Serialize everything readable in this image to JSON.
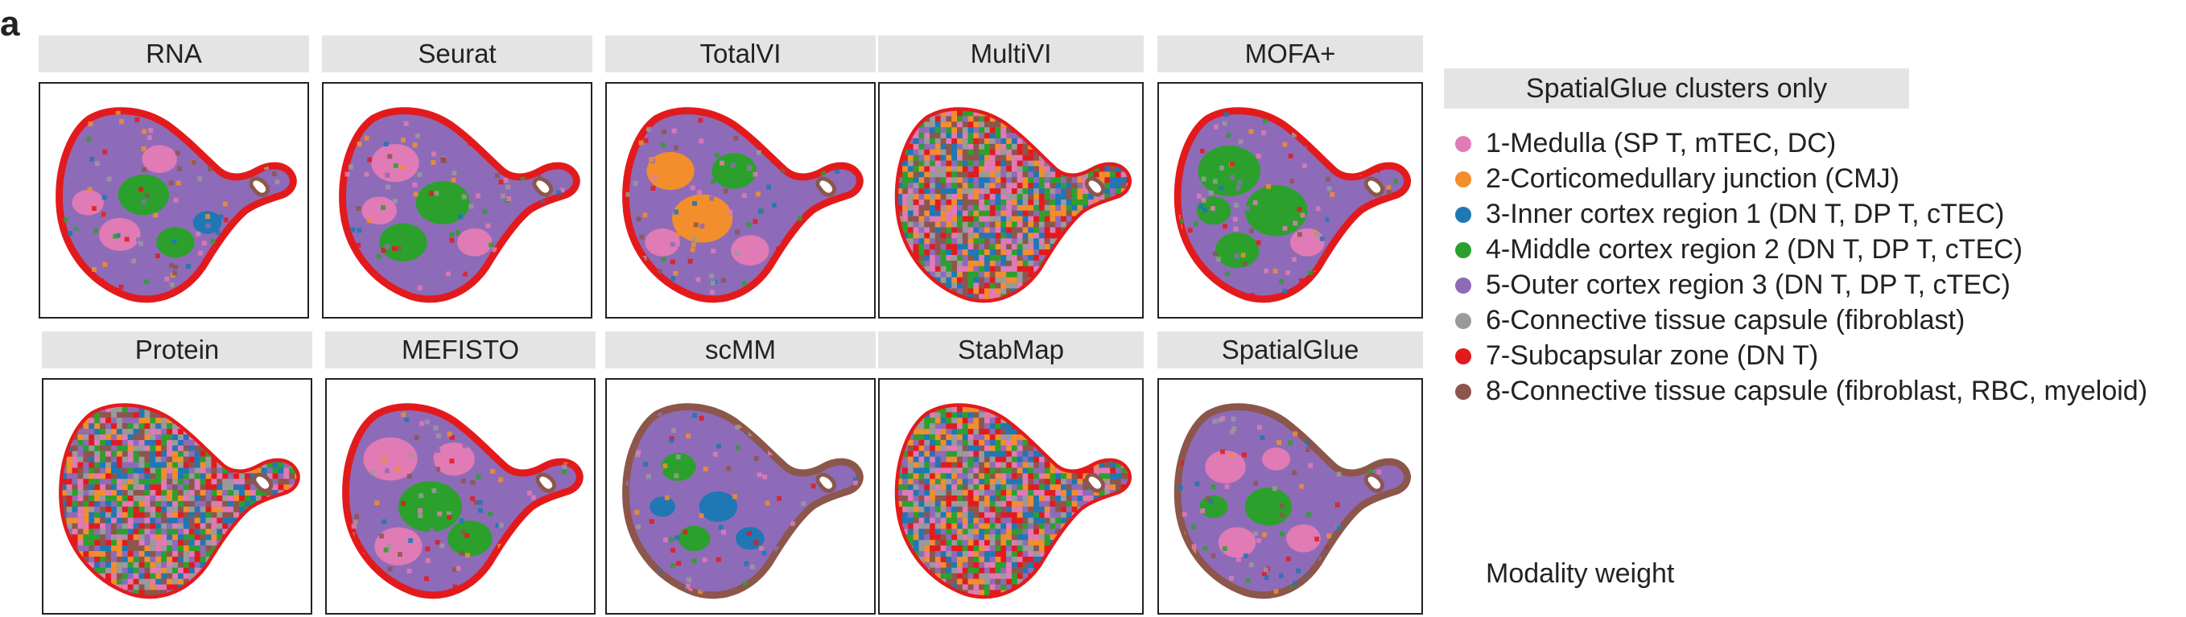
{
  "figure": {
    "panel_letter": "a",
    "methods": [
      {
        "name": "RNA",
        "pattern": "rna"
      },
      {
        "name": "Seurat",
        "pattern": "seurat"
      },
      {
        "name": "TotalVI",
        "pattern": "totalvi"
      },
      {
        "name": "MultiVI",
        "pattern": "noise"
      },
      {
        "name": "MOFA+",
        "pattern": "mofa"
      },
      {
        "name": "Protein",
        "pattern": "noise"
      },
      {
        "name": "MEFISTO",
        "pattern": "mefisto"
      },
      {
        "name": "scMM",
        "pattern": "scmm"
      },
      {
        "name": "StabMap",
        "pattern": "noise"
      },
      {
        "name": "SpatialGlue",
        "pattern": "spatialglue"
      }
    ],
    "legend": {
      "header": "SpatialGlue clusters only",
      "items": [
        {
          "label": "1-Medulla (SP T, mTEC, DC)",
          "color": "#e07bb5"
        },
        {
          "label": "2-Corticomedullary junction (CMJ)",
          "color": "#f28e2b"
        },
        {
          "label": "3-Inner cortex region 1 (DN T, DP T, cTEC)",
          "color": "#1f77b4"
        },
        {
          "label": "4-Middle cortex region 2 (DN T, DP T, cTEC)",
          "color": "#2ca02c"
        },
        {
          "label": "5-Outer cortex region 3 (DN T, DP T, cTEC)",
          "color": "#8e6bb8"
        },
        {
          "label": "6-Connective tissue capsule (fibroblast)",
          "color": "#9a9a9a"
        },
        {
          "label": "7-Subcapsular zone (DN T)",
          "color": "#e31a1c"
        },
        {
          "label": "8-Connective tissue capsule (fibroblast, RBC, myeloid)",
          "color": "#8c564b"
        }
      ],
      "footer": "Modality weight"
    }
  }
}
